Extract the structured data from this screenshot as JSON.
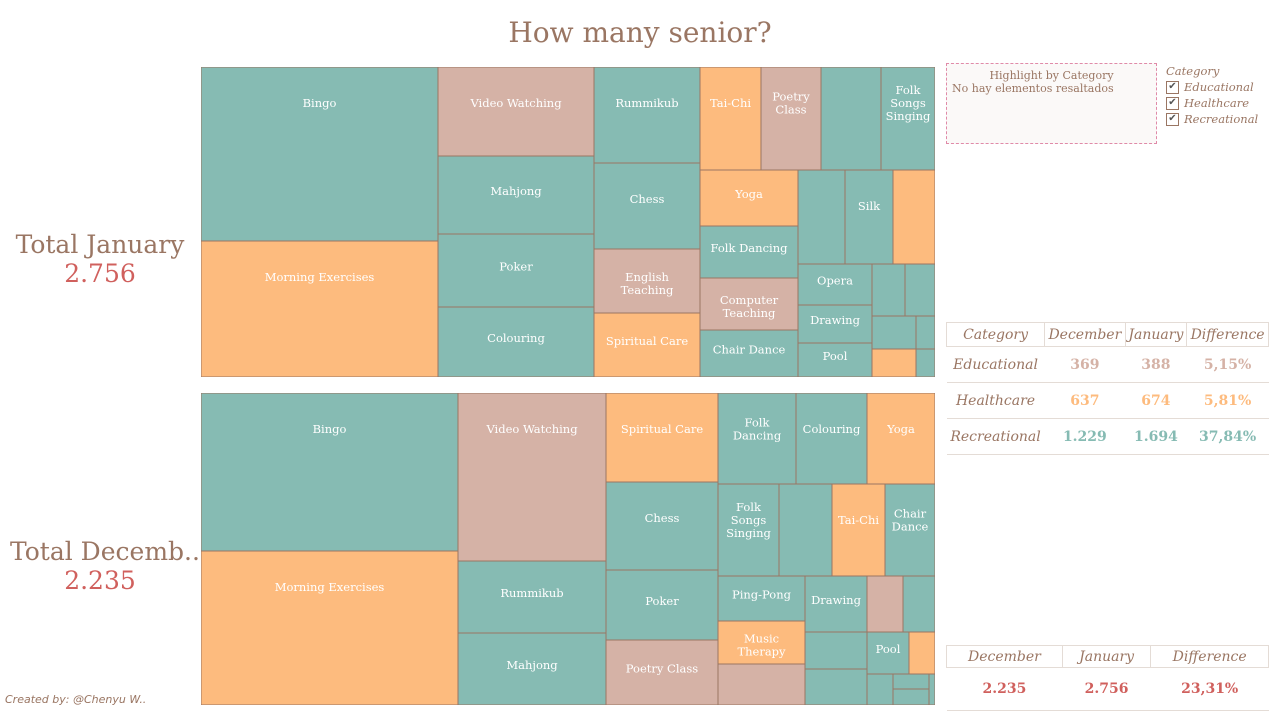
{
  "title": "How many senior?",
  "kpis": {
    "january": {
      "label": "Total January",
      "value": "2.756"
    },
    "december": {
      "label": "Total Decemb..",
      "value": "2.235"
    }
  },
  "colors": {
    "Educational": "#d5b2a6",
    "Healthcare": "#fdbb7e",
    "Recreational": "#86bbb3",
    "border": "#9a7663"
  },
  "highlight": {
    "title": "Highlight by Category",
    "note": "No hay elementos resaltados"
  },
  "legend": {
    "title": "Category",
    "items": [
      "Educational",
      "Healthcare",
      "Recreational"
    ]
  },
  "category_table": {
    "headers": [
      "Category",
      "December",
      "January",
      "Difference"
    ],
    "rows": [
      {
        "category": "Educational",
        "december": "369",
        "january": "388",
        "difference": "5,15%",
        "color": "#d5b2a6"
      },
      {
        "category": "Healthcare",
        "december": "637",
        "january": "674",
        "difference": "5,81%",
        "color": "#fdbb7e"
      },
      {
        "category": "Recreational",
        "december": "1.229",
        "january": "1.694",
        "difference": "37,84%",
        "color": "#86bbb3"
      }
    ]
  },
  "total_table": {
    "headers": [
      "December",
      "January",
      "Difference"
    ],
    "values": [
      "2.235",
      "2.756",
      "23,31%"
    ]
  },
  "credit": "Created by: @Chenyu W..",
  "chart_data": [
    {
      "type": "treemap",
      "name": "January",
      "total": 2756,
      "tiles": [
        {
          "label": "Bingo",
          "category": "Recreational"
        },
        {
          "label": "Morning Exercises",
          "category": "Healthcare"
        },
        {
          "label": "Video Watching",
          "category": "Educational"
        },
        {
          "label": "Mahjong",
          "category": "Recreational"
        },
        {
          "label": "Poker",
          "category": "Recreational"
        },
        {
          "label": "Colouring",
          "category": "Recreational"
        },
        {
          "label": "Rummikub",
          "category": "Recreational"
        },
        {
          "label": "Chess",
          "category": "Recreational"
        },
        {
          "label": "English Teaching",
          "category": "Educational"
        },
        {
          "label": "Spiritual Care",
          "category": "Healthcare"
        },
        {
          "label": "Tai-Chi",
          "category": "Healthcare"
        },
        {
          "label": "Poetry Class",
          "category": "Educational"
        },
        {
          "label": "",
          "category": "Recreational"
        },
        {
          "label": "Folk Songs Singing",
          "category": "Recreational"
        },
        {
          "label": "Yoga",
          "category": "Healthcare"
        },
        {
          "label": "Folk Dancing",
          "category": "Recreational"
        },
        {
          "label": "Computer Teaching",
          "category": "Educational"
        },
        {
          "label": "Chair Dance",
          "category": "Recreational"
        },
        {
          "label": "",
          "category": "Recreational"
        },
        {
          "label": "Silk",
          "category": "Recreational"
        },
        {
          "label": "",
          "category": "Healthcare"
        },
        {
          "label": "Opera",
          "category": "Recreational"
        },
        {
          "label": "Drawing",
          "category": "Recreational"
        },
        {
          "label": "Pool",
          "category": "Recreational"
        },
        {
          "label": "",
          "category": "Recreational"
        },
        {
          "label": "",
          "category": "Recreational"
        },
        {
          "label": "",
          "category": "Recreational"
        },
        {
          "label": "",
          "category": "Recreational"
        },
        {
          "label": "",
          "category": "Healthcare"
        },
        {
          "label": "",
          "category": "Recreational"
        }
      ]
    },
    {
      "type": "treemap",
      "name": "December",
      "total": 2235,
      "tiles": [
        {
          "label": "Bingo",
          "category": "Recreational"
        },
        {
          "label": "Morning Exercises",
          "category": "Healthcare"
        },
        {
          "label": "Video Watching",
          "category": "Educational"
        },
        {
          "label": "Rummikub",
          "category": "Recreational"
        },
        {
          "label": "Mahjong",
          "category": "Recreational"
        },
        {
          "label": "Spiritual Care",
          "category": "Healthcare"
        },
        {
          "label": "Chess",
          "category": "Recreational"
        },
        {
          "label": "Poker",
          "category": "Recreational"
        },
        {
          "label": "Poetry Class",
          "category": "Educational"
        },
        {
          "label": "Folk Dancing",
          "category": "Recreational"
        },
        {
          "label": "Colouring",
          "category": "Recreational"
        },
        {
          "label": "Yoga",
          "category": "Healthcare"
        },
        {
          "label": "Folk Songs Singing",
          "category": "Recreational"
        },
        {
          "label": "",
          "category": "Recreational"
        },
        {
          "label": "Tai-Chi",
          "category": "Healthcare"
        },
        {
          "label": "Chair Dance",
          "category": "Recreational"
        },
        {
          "label": "Ping-Pong",
          "category": "Recreational"
        },
        {
          "label": "Music Therapy",
          "category": "Healthcare"
        },
        {
          "label": "",
          "category": "Educational"
        },
        {
          "label": "Drawing",
          "category": "Recreational"
        },
        {
          "label": "",
          "category": "Educational"
        },
        {
          "label": "",
          "category": "Recreational"
        },
        {
          "label": "",
          "category": "Recreational"
        },
        {
          "label": "Pool",
          "category": "Recreational"
        },
        {
          "label": "",
          "category": "Healthcare"
        },
        {
          "label": "",
          "category": "Recreational"
        },
        {
          "label": "",
          "category": "Recreational"
        },
        {
          "label": "",
          "category": "Recreational"
        },
        {
          "label": "",
          "category": "Recreational"
        },
        {
          "label": "",
          "category": "Recreational"
        }
      ]
    }
  ]
}
